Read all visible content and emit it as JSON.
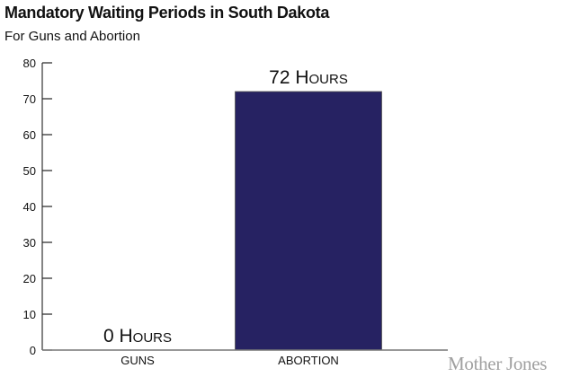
{
  "chart_data": {
    "type": "bar",
    "title": "Mandatory Waiting Periods in South Dakota",
    "subtitle": "For Guns and Abortion",
    "categories": [
      "GUNS",
      "ABORTION"
    ],
    "values": [
      0,
      72
    ],
    "data_labels": [
      "0 Hours",
      "72 Hours"
    ],
    "xlabel": "",
    "ylabel": "",
    "ylim": [
      0,
      80
    ],
    "yticks": [
      0,
      10,
      20,
      30,
      40,
      50,
      60,
      70,
      80
    ],
    "grid": false,
    "bar_color": "#262262"
  },
  "logo": "Mother Jones"
}
